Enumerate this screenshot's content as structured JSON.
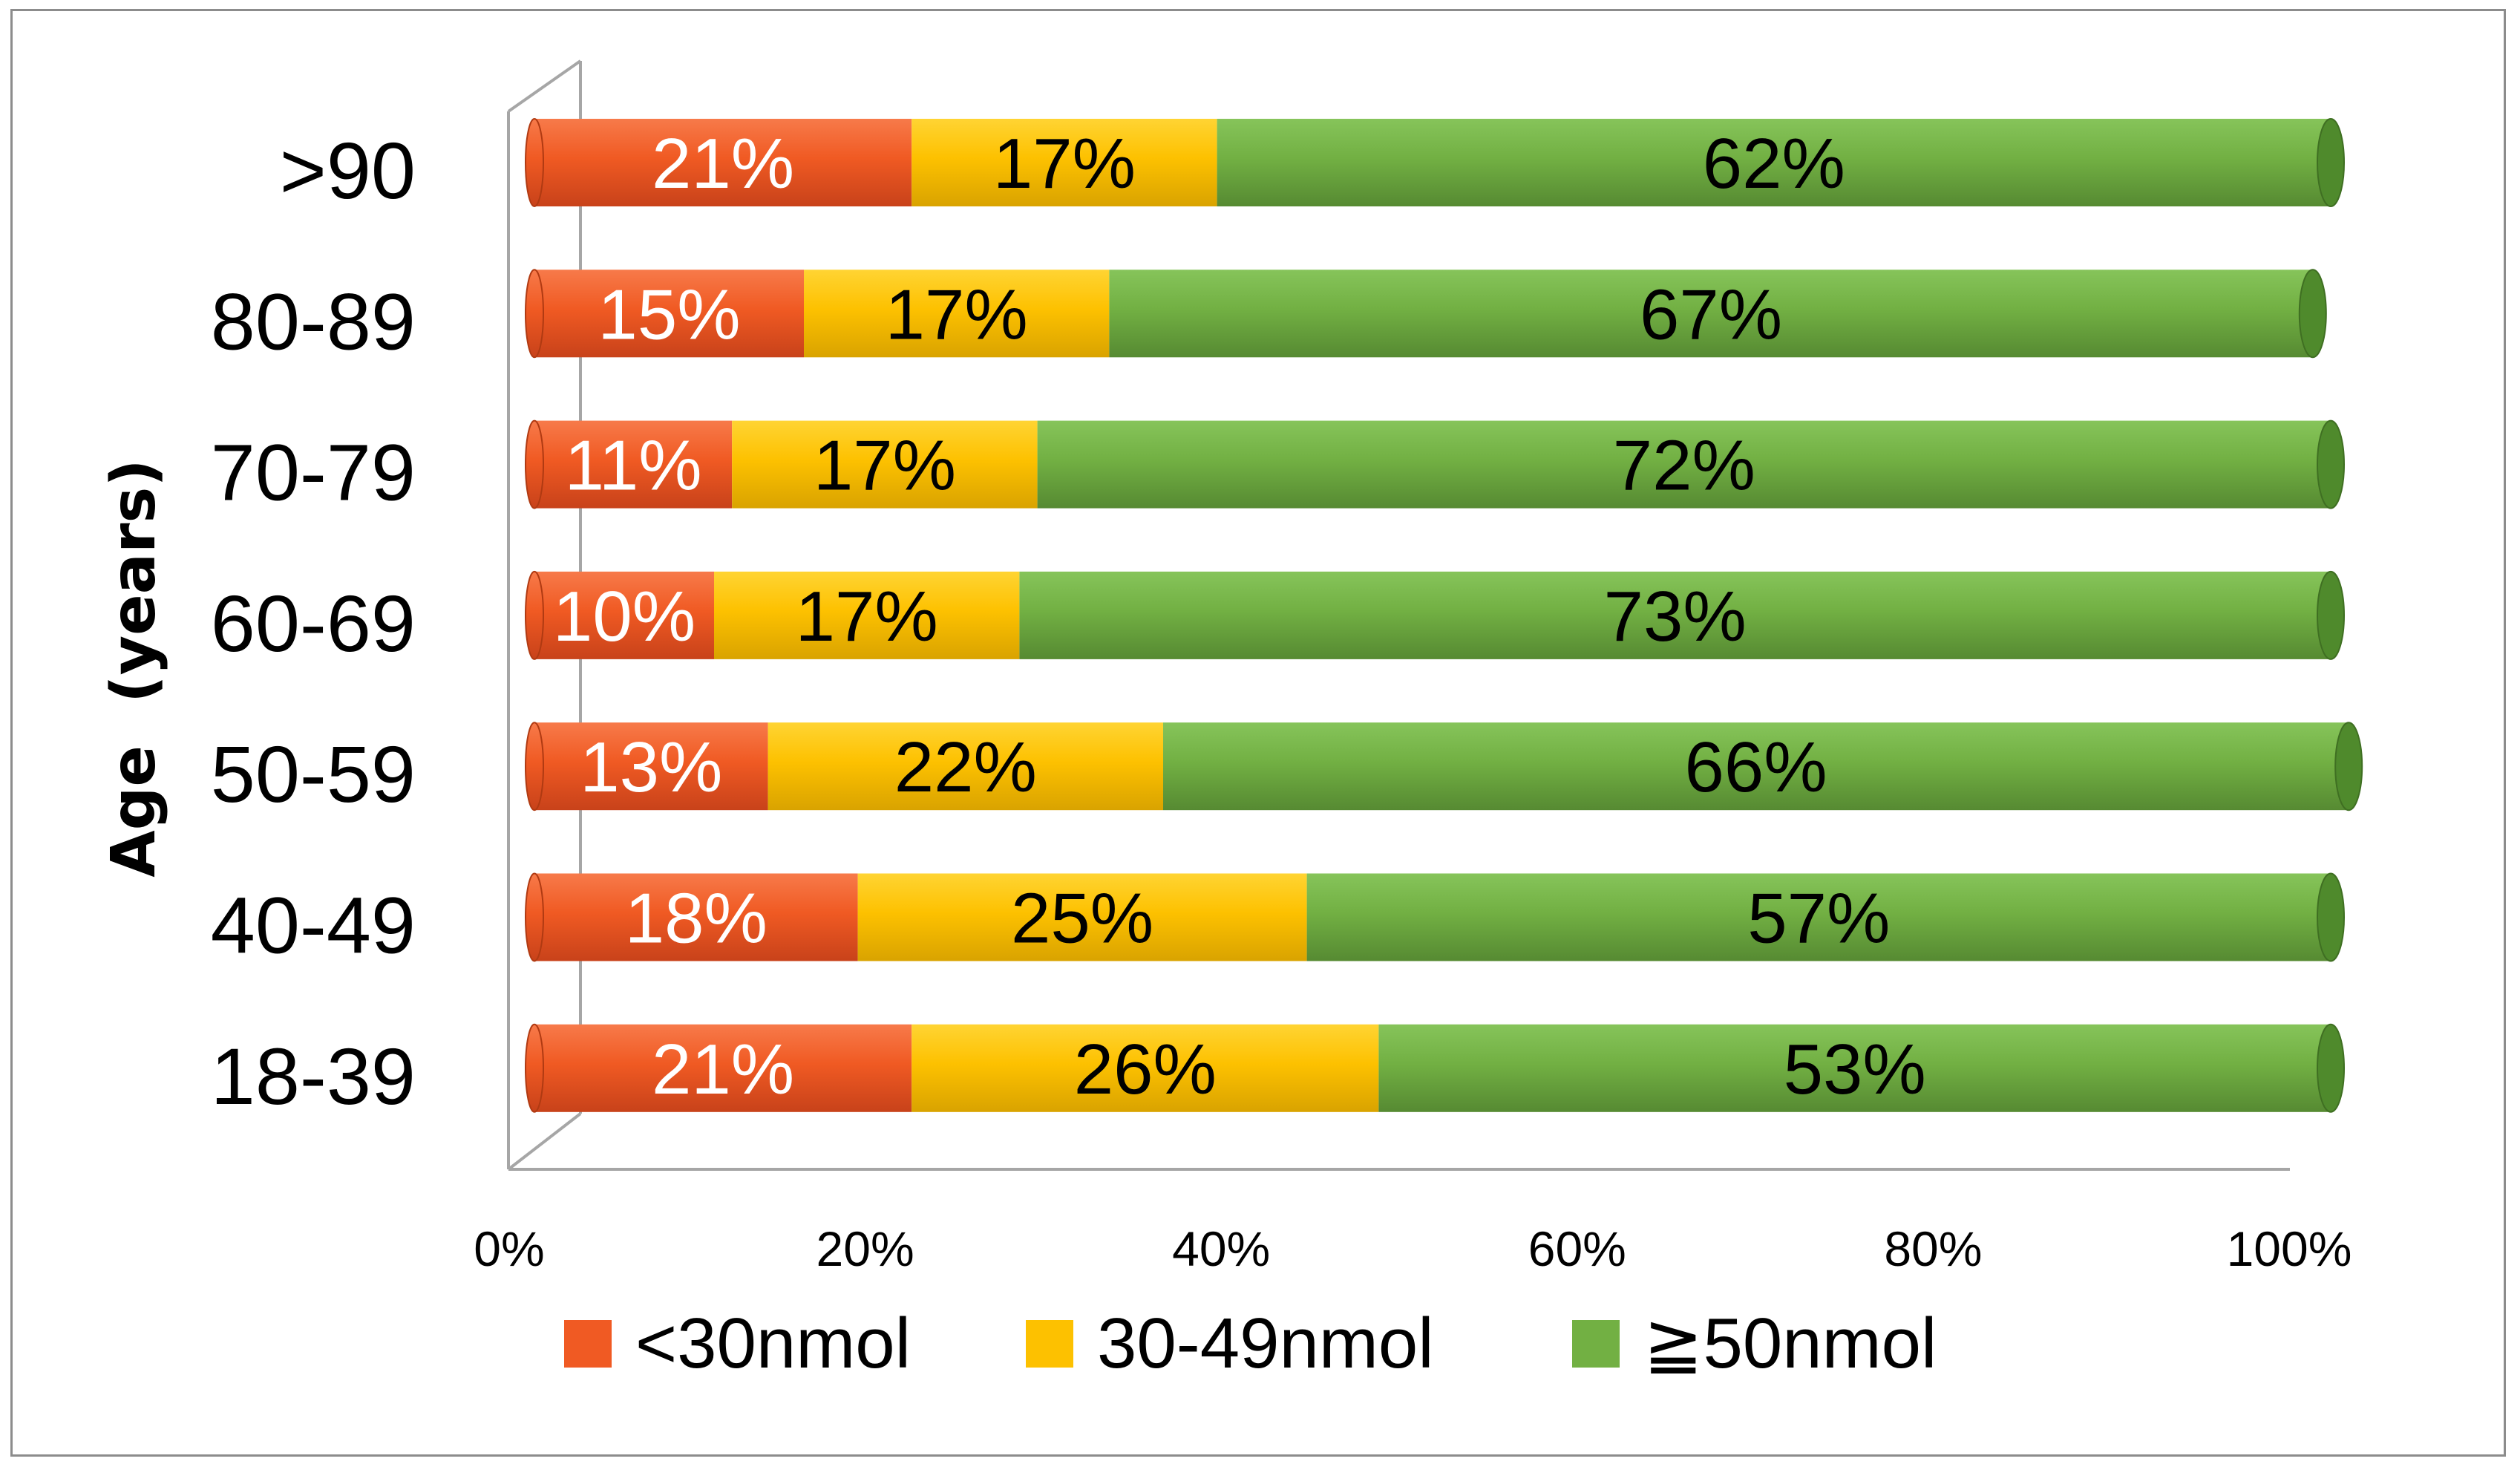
{
  "chart_data": {
    "type": "bar",
    "orientation": "horizontal",
    "stacked": "percent",
    "title": "",
    "xlabel": "",
    "ylabel": "Age  (years)",
    "xlim": [
      0,
      100
    ],
    "xticks": [
      0,
      20,
      40,
      60,
      80,
      100
    ],
    "xtick_labels": [
      "0%",
      "20%",
      "40%",
      "60%",
      "80%",
      "100%"
    ],
    "grid": false,
    "legend_position": "bottom",
    "categories": [
      ">90",
      "80-89",
      "70-79",
      "60-69",
      "50-59",
      "40-49",
      "18-39"
    ],
    "series": [
      {
        "name": "<30nmol",
        "color": "#f05a23",
        "label_color": "#ffffff",
        "values": [
          21,
          15,
          11,
          10,
          13,
          18,
          21
        ],
        "labels": [
          "21%",
          "15%",
          "11%",
          "10%",
          "13%",
          "18%",
          "21%"
        ]
      },
      {
        "name": "30-49nmol",
        "color": "#fdc100",
        "label_color": "#000000",
        "values": [
          17,
          17,
          17,
          17,
          22,
          25,
          26
        ],
        "labels": [
          "17%",
          "17%",
          "17%",
          "17%",
          "22%",
          "25%",
          "26%"
        ]
      },
      {
        "name": "≧50nmol",
        "color": "#72b043",
        "label_color": "#000000",
        "values": [
          62,
          67,
          72,
          73,
          66,
          57,
          53
        ],
        "labels": [
          "62%",
          "67%",
          "72%",
          "73%",
          "66%",
          "57%",
          "53%"
        ]
      }
    ]
  }
}
